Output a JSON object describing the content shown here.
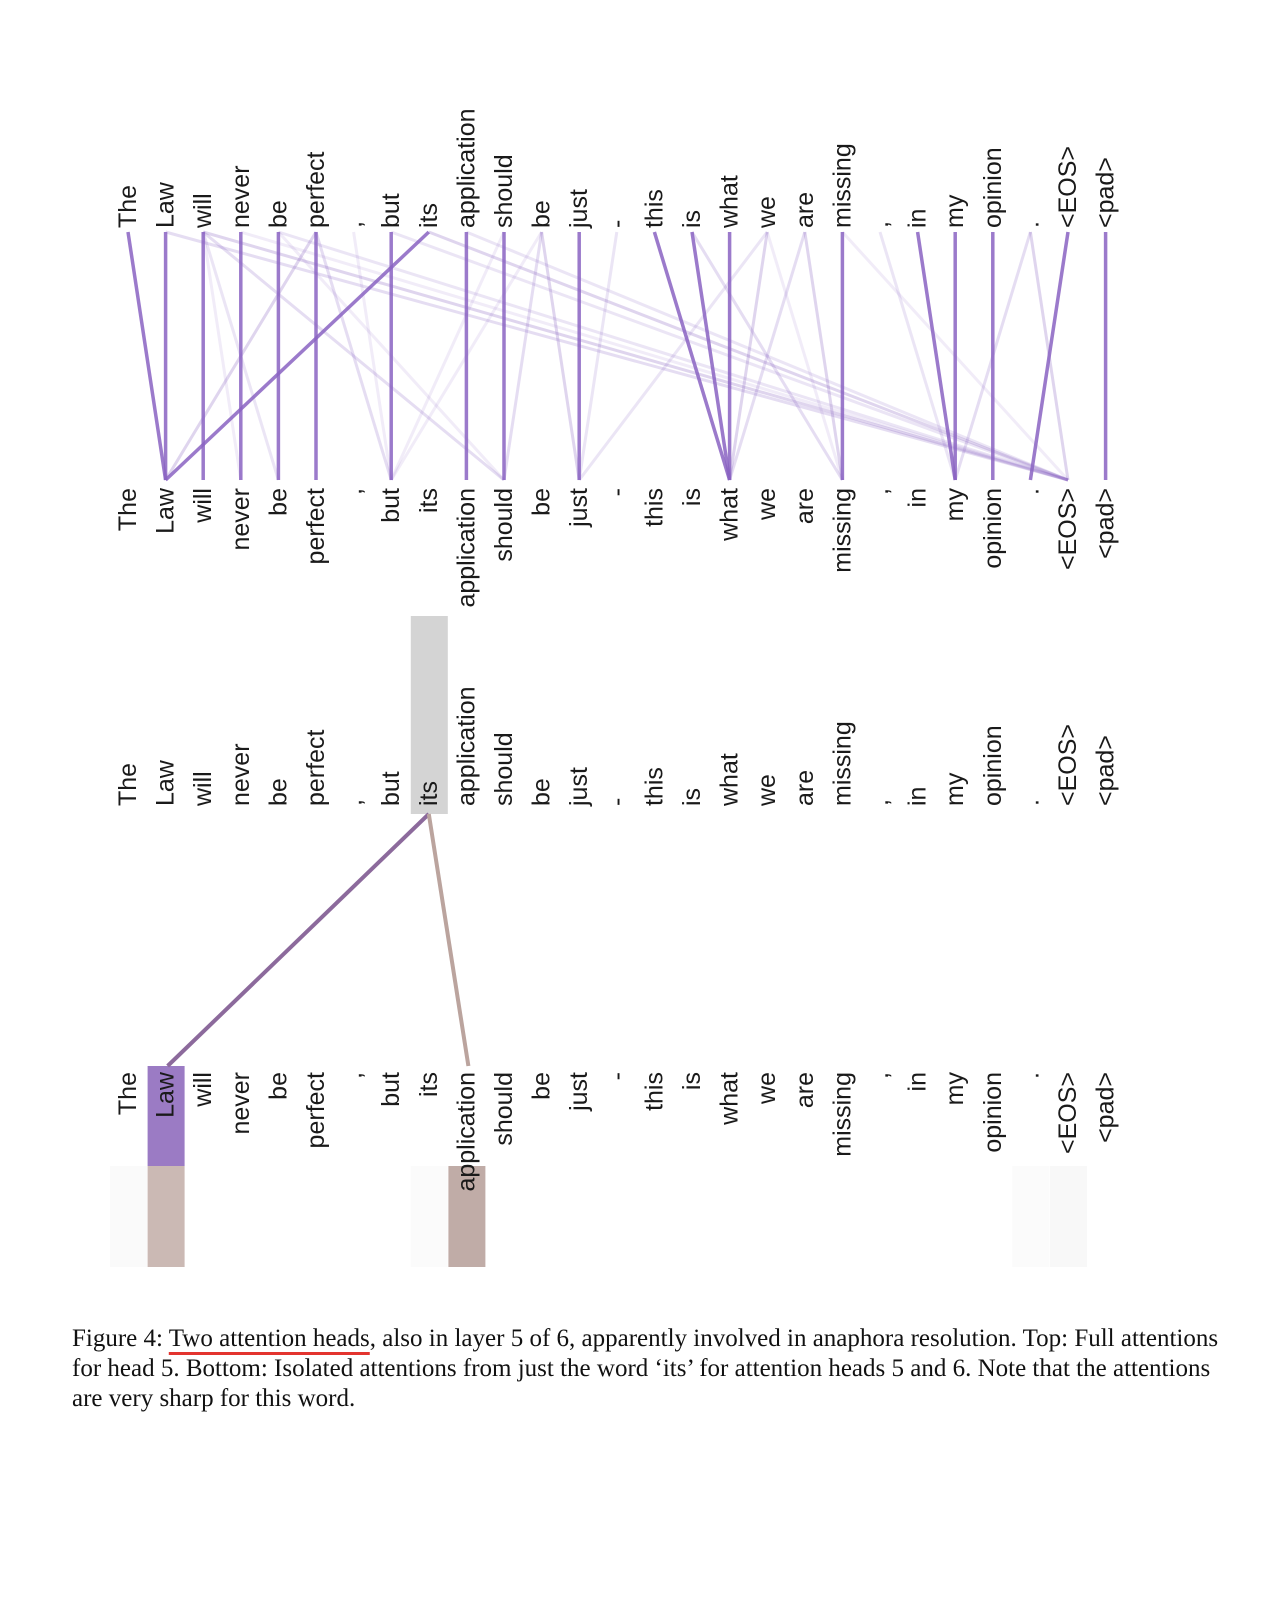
{
  "figure": {
    "tokens": [
      "The",
      "Law",
      "will",
      "never",
      "be",
      "perfect",
      ",",
      "but",
      "its",
      "application",
      "should",
      "be",
      "just",
      "-",
      "this",
      "is",
      "what",
      "we",
      "are",
      "missing",
      ",",
      "in",
      "my",
      "opinion",
      ".",
      "<EOS>",
      "<pad>"
    ],
    "top_panel": {
      "head": 5,
      "line_color": "#8a63c2",
      "strong_links": [
        [
          0,
          1
        ],
        [
          1,
          1
        ],
        [
          2,
          2
        ],
        [
          3,
          3
        ],
        [
          4,
          4
        ],
        [
          5,
          5
        ],
        [
          7,
          7
        ],
        [
          8,
          1
        ],
        [
          9,
          9
        ],
        [
          10,
          10
        ],
        [
          12,
          12
        ],
        [
          14,
          16
        ],
        [
          15,
          16
        ],
        [
          16,
          16
        ],
        [
          19,
          19
        ],
        [
          21,
          22
        ],
        [
          22,
          22
        ],
        [
          23,
          23
        ],
        [
          25,
          24
        ],
        [
          26,
          26
        ]
      ],
      "weak_links": [
        [
          2,
          3
        ],
        [
          2,
          4
        ],
        [
          2,
          10
        ],
        [
          2,
          25
        ],
        [
          4,
          10
        ],
        [
          4,
          25
        ],
        [
          5,
          7
        ],
        [
          5,
          1
        ],
        [
          6,
          7
        ],
        [
          7,
          25
        ],
        [
          11,
          10
        ],
        [
          11,
          12
        ],
        [
          11,
          7
        ],
        [
          13,
          12
        ],
        [
          15,
          19
        ],
        [
          17,
          16
        ],
        [
          17,
          19
        ],
        [
          17,
          12
        ],
        [
          18,
          16
        ],
        [
          18,
          19
        ],
        [
          19,
          25
        ],
        [
          20,
          22
        ],
        [
          24,
          22
        ],
        [
          24,
          25
        ],
        [
          3,
          25
        ],
        [
          9,
          25
        ],
        [
          1,
          25
        ],
        [
          8,
          25
        ],
        [
          10,
          7
        ]
      ]
    },
    "bottom_panel": {
      "query_token": "its",
      "query_index": 8,
      "heads": [
        {
          "head": 5,
          "color": "#9b7bc4",
          "targets": [
            1
          ],
          "weight": 0.95
        },
        {
          "head": 6,
          "color": "#bba49e",
          "targets": [
            9
          ],
          "weight": 0.9
        }
      ],
      "faint_cells": [
        {
          "head": 6,
          "index": 1,
          "color": "#cbb9b4"
        },
        {
          "head": 6,
          "index": 9,
          "color": "#c0aca7"
        },
        {
          "head": 6,
          "index": 0,
          "color": "#fafafa"
        },
        {
          "head": 6,
          "index": 25,
          "color": "#f8f8f8"
        },
        {
          "head": 6,
          "index": 24,
          "color": "#fbfbfb"
        },
        {
          "head": 6,
          "index": 8,
          "color": "#fbfbfb"
        }
      ],
      "highlight_color": "#d4d4d4"
    }
  },
  "caption": {
    "label": "Figure 4:",
    "underlined": "Two attention heads",
    "text": ", also in layer 5 of 6, apparently involved in anaphora resolution. Top: Full attentions for head 5. Bottom: Isolated attentions from just the word ‘its’ for attention heads 5 and 6. Note that the attentions are very sharp for this word."
  }
}
